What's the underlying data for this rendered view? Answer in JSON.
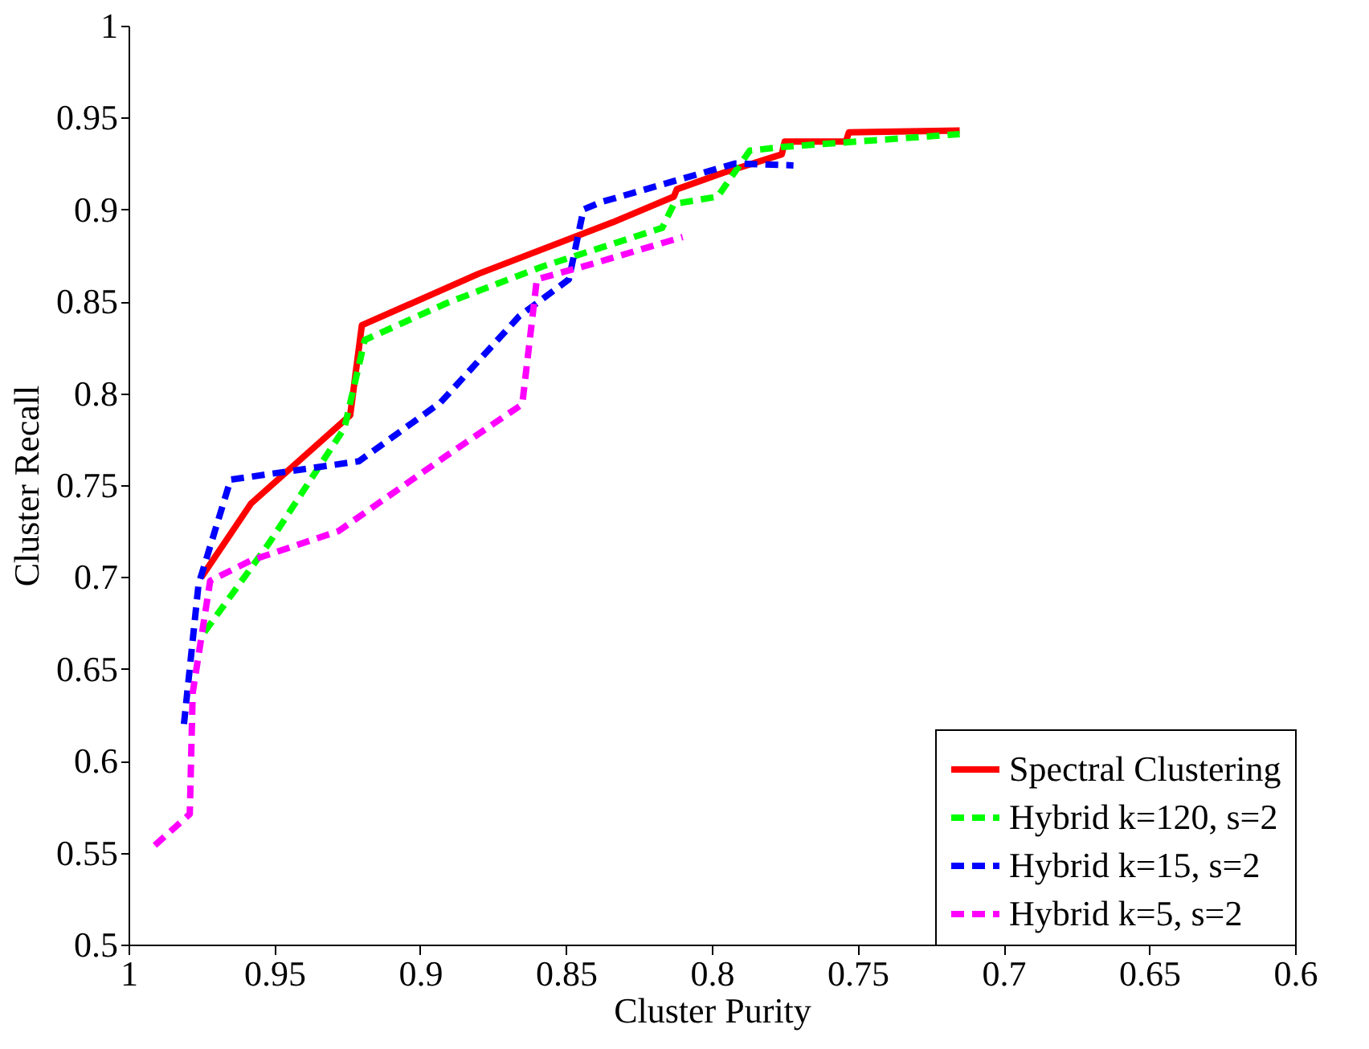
{
  "chart_data": {
    "type": "line",
    "xlabel": "Cluster Purity",
    "ylabel": "Cluster Recall",
    "xlim": [
      1,
      0.6
    ],
    "xticks": [
      1,
      0.95,
      0.9,
      0.85,
      0.8,
      0.75,
      0.7,
      0.65,
      0.6
    ],
    "ylim": [
      0.5,
      1
    ],
    "yticks": [
      0.5,
      0.55,
      0.6,
      0.65,
      0.7,
      0.75,
      0.8,
      0.85,
      0.9,
      0.95,
      1
    ],
    "grid": false,
    "legend": "bottom right",
    "marker": "none",
    "series": [
      {
        "name": "Spectral Clustering",
        "color": "#ff0000",
        "line_style": "solid",
        "x": [
          0.975,
          0.958,
          0.924,
          0.92,
          0.88,
          0.834,
          0.813,
          0.812,
          0.796,
          0.776,
          0.775,
          0.754,
          0.753,
          0.715
        ],
        "values": [
          0.7,
          0.74,
          0.788,
          0.837,
          0.865,
          0.893,
          0.907,
          0.911,
          0.92,
          0.93,
          0.937,
          0.937,
          0.942,
          0.943
        ]
      },
      {
        "name": "Hybrid k=120, s=2",
        "color": "#00ff00",
        "line_style": "dashed",
        "x": [
          0.974,
          0.952,
          0.926,
          0.919,
          0.891,
          0.858,
          0.817,
          0.813,
          0.798,
          0.787,
          0.776,
          0.715
        ],
        "values": [
          0.67,
          0.718,
          0.781,
          0.829,
          0.849,
          0.869,
          0.89,
          0.903,
          0.907,
          0.932,
          0.934,
          0.941
        ]
      },
      {
        "name": "Hybrid k=15, s=2",
        "color": "#0000ff",
        "line_style": "dashed",
        "x": [
          0.981,
          0.976,
          0.965,
          0.921,
          0.893,
          0.866,
          0.849,
          0.844,
          0.838,
          0.792,
          0.772
        ],
        "values": [
          0.62,
          0.696,
          0.753,
          0.763,
          0.795,
          0.842,
          0.862,
          0.9,
          0.904,
          0.925,
          0.924
        ]
      },
      {
        "name": "Hybrid k=5, s=2",
        "color": "#ff00ff",
        "line_style": "dashed",
        "x": [
          0.991,
          0.979,
          0.978,
          0.972,
          0.958,
          0.928,
          0.891,
          0.865,
          0.86,
          0.844,
          0.81
        ],
        "values": [
          0.554,
          0.571,
          0.637,
          0.698,
          0.709,
          0.725,
          0.766,
          0.794,
          0.862,
          0.869,
          0.885
        ]
      }
    ]
  }
}
